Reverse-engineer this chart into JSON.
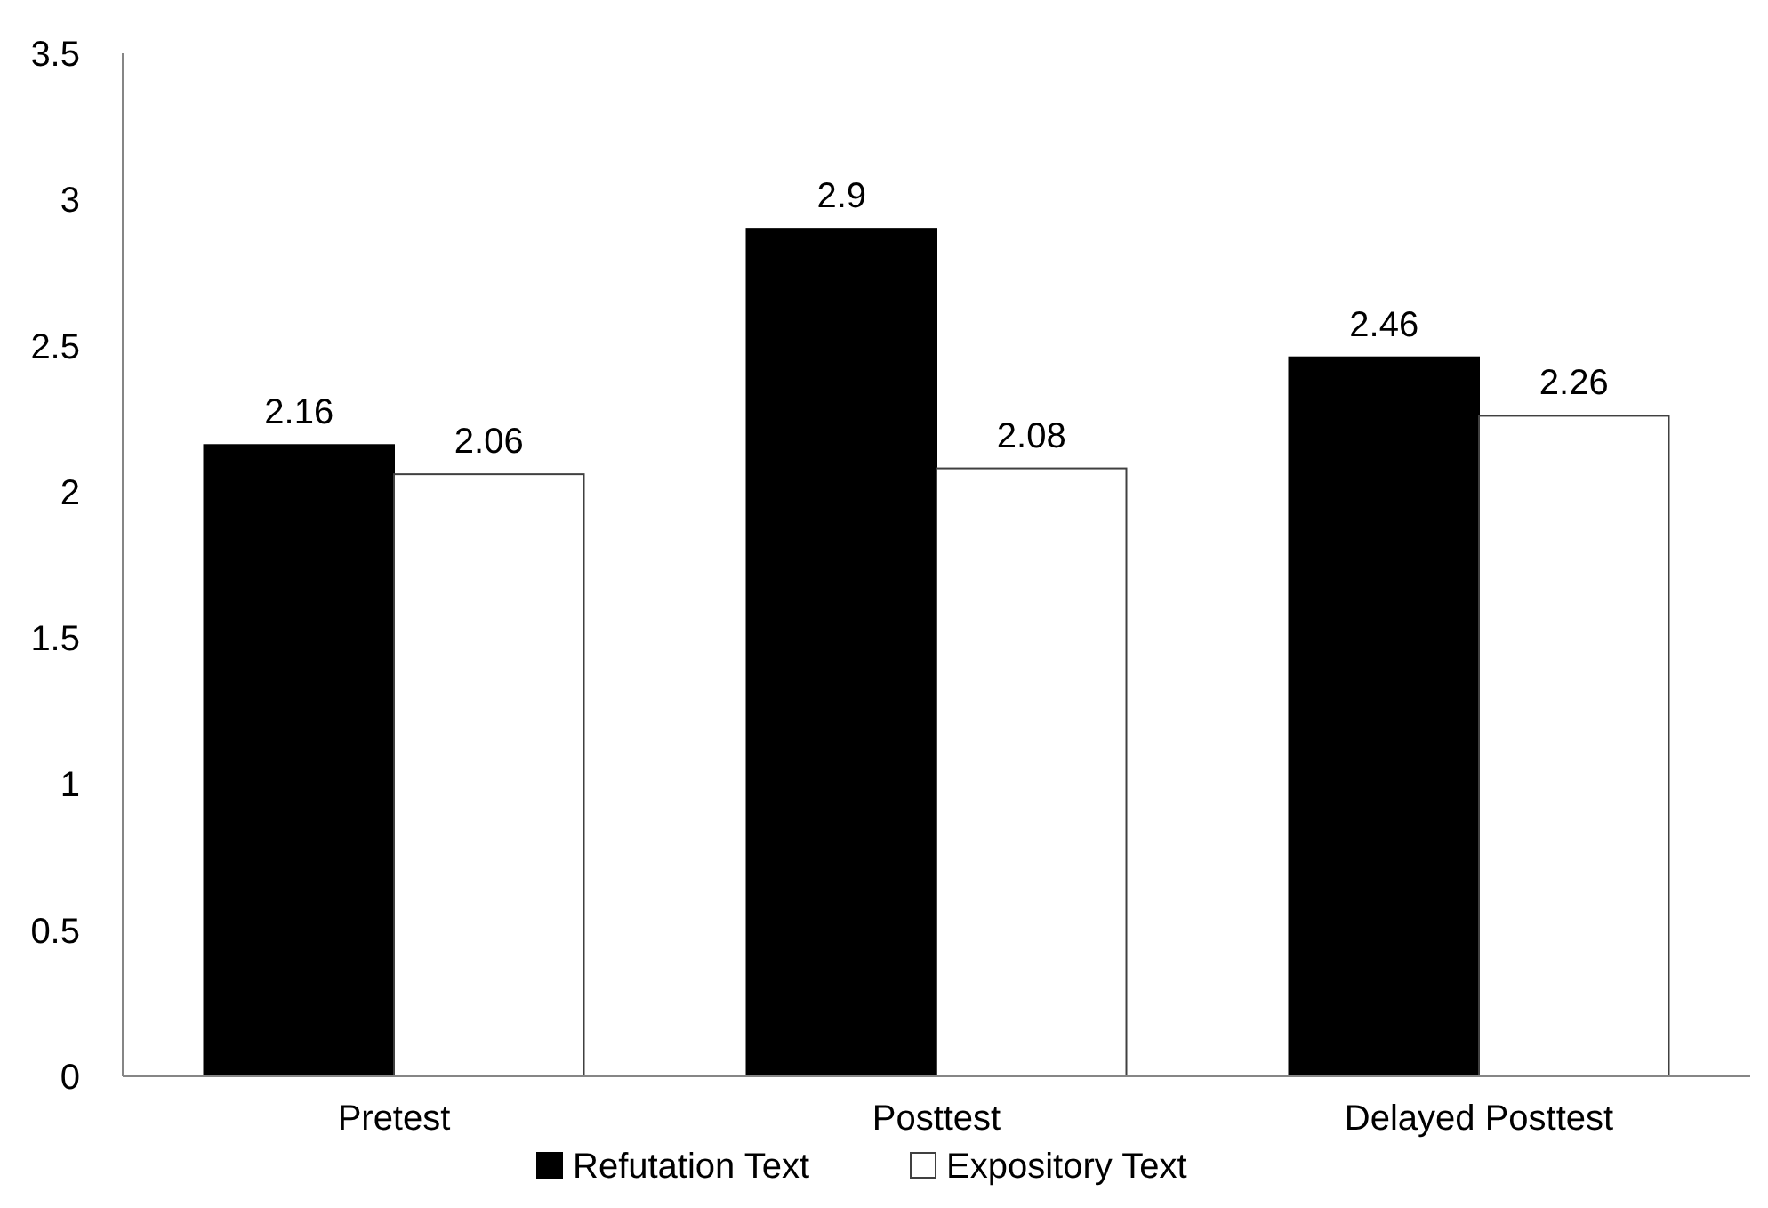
{
  "chart_data": {
    "type": "bar",
    "categories": [
      "Pretest",
      "Posttest",
      "Delayed Posttest"
    ],
    "series": [
      {
        "name": "Refutation Text",
        "color": "#000000",
        "values": [
          2.16,
          2.9,
          2.46
        ]
      },
      {
        "name": "Expository Text",
        "color": "#ffffff",
        "values": [
          2.06,
          2.08,
          2.26
        ]
      }
    ],
    "ylim": [
      0,
      3.5
    ],
    "yticks": [
      0,
      0.5,
      1,
      1.5,
      2,
      2.5,
      3,
      3.5
    ],
    "data_labels": true,
    "legend": "bottom",
    "grid": false
  }
}
